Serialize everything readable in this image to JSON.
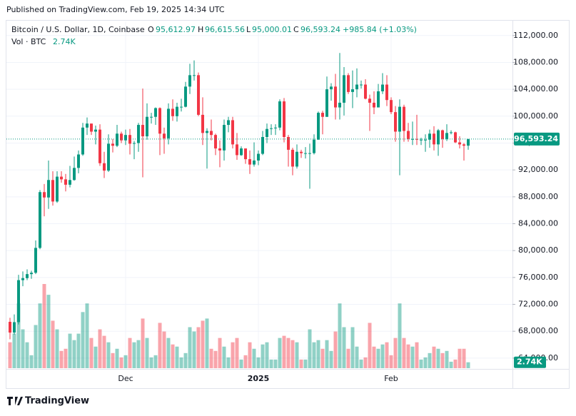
{
  "published": "Published on TradingView.com, Feb 19, 2025 14:34 UTC",
  "footer": "TradingView",
  "chart_data": {
    "type": "candlestick",
    "legend": {
      "symbol": "Bitcoin / U.S. Dollar, 1D, Coinbase",
      "open_label": "O",
      "open": "95,612.97",
      "high_label": "H",
      "high": "96,615.56",
      "low_label": "L",
      "low": "95,000.01",
      "close_label": "C",
      "close": "96,593.24",
      "change": "+985.84 (+1.03%)"
    },
    "up_color": "#089981",
    "down_color": "#f23645",
    "categories": [
      null,
      null,
      null,
      null,
      null,
      null,
      null,
      null,
      null,
      null,
      null,
      null,
      null,
      null,
      null,
      null,
      null,
      null,
      null,
      null,
      null,
      null,
      null,
      null,
      null,
      null,
      null,
      "Dec",
      null,
      null,
      null,
      null,
      null,
      null,
      null,
      null,
      null,
      null,
      null,
      null,
      null,
      null,
      null,
      null,
      null,
      null,
      null,
      null,
      null,
      null,
      null,
      null,
      null,
      null,
      null,
      null,
      null,
      null,
      "2025",
      null,
      null,
      null,
      null,
      null,
      null,
      null,
      null,
      null,
      null,
      null,
      null,
      null,
      null,
      null,
      null,
      null,
      null,
      null,
      null,
      null,
      null,
      null,
      null,
      null,
      null,
      null,
      null,
      null,
      null,
      "Feb",
      null,
      null,
      null,
      null,
      null,
      null,
      null,
      null,
      null,
      null,
      null,
      null,
      null,
      null,
      null,
      null,
      null,
      null
    ],
    "ohlc": [
      [
        69400,
        70000,
        66800,
        67800
      ],
      [
        67800,
        70500,
        67500,
        69350
      ],
      [
        69350,
        76400,
        69000,
        75600
      ],
      [
        75600,
        76900,
        74700,
        75900
      ],
      [
        75900,
        77200,
        75600,
        76500
      ],
      [
        76500,
        77000,
        75800,
        76700
      ],
      [
        76700,
        81500,
        76500,
        80400
      ],
      [
        80400,
        89000,
        80200,
        88700
      ],
      [
        88700,
        89900,
        85100,
        87900
      ],
      [
        87900,
        93400,
        86200,
        90500
      ],
      [
        90500,
        91800,
        86700,
        87300
      ],
      [
        87300,
        91800,
        87100,
        91000
      ],
      [
        91000,
        91800,
        90100,
        90600
      ],
      [
        90600,
        91400,
        88800,
        89800
      ],
      [
        89800,
        92600,
        89400,
        90500
      ],
      [
        90500,
        94000,
        90400,
        92300
      ],
      [
        92300,
        94900,
        91500,
        94300
      ],
      [
        94300,
        99000,
        94100,
        98300
      ],
      [
        98300,
        99800,
        97200,
        98900
      ],
      [
        98900,
        98900,
        97200,
        97700
      ],
      [
        97700,
        98600,
        95800,
        98000
      ],
      [
        98000,
        98800,
        92600,
        93000
      ],
      [
        93000,
        94700,
        90800,
        91900
      ],
      [
        91900,
        97300,
        91700,
        95900
      ],
      [
        95900,
        96600,
        94600,
        95600
      ],
      [
        95600,
        98700,
        95400,
        97400
      ],
      [
        97400,
        97700,
        96000,
        96400
      ],
      [
        96400,
        98000,
        95700,
        97200
      ],
      [
        97200,
        98100,
        94300,
        95900
      ],
      [
        95900,
        96300,
        93600,
        96000
      ],
      [
        96000,
        99000,
        94700,
        98700
      ],
      [
        98700,
        104100,
        90900,
        97000
      ],
      [
        97000,
        101900,
        96500,
        99900
      ],
      [
        99900,
        100500,
        98900,
        99900
      ],
      [
        99900,
        101300,
        98700,
        101200
      ],
      [
        101200,
        101300,
        94200,
        97400
      ],
      [
        97400,
        98300,
        94400,
        96700
      ],
      [
        96700,
        101900,
        95800,
        101100
      ],
      [
        101100,
        102500,
        99300,
        100000
      ],
      [
        100000,
        102000,
        99200,
        101400
      ],
      [
        101400,
        102600,
        100700,
        101400
      ],
      [
        101400,
        105100,
        101300,
        104400
      ],
      [
        104400,
        107800,
        103300,
        106100
      ],
      [
        106100,
        108300,
        105300,
        106100
      ],
      [
        106100,
        106500,
        100000,
        100200
      ],
      [
        100200,
        102800,
        95700,
        97500
      ],
      [
        97500,
        98200,
        92200,
        97800
      ],
      [
        97800,
        99500,
        96400,
        97200
      ],
      [
        97200,
        97400,
        94200,
        95200
      ],
      [
        95200,
        96400,
        92400,
        94900
      ],
      [
        94900,
        99500,
        93400,
        98700
      ],
      [
        98700,
        99900,
        97600,
        99400
      ],
      [
        99400,
        99900,
        95200,
        95800
      ],
      [
        95800,
        97500,
        93500,
        94200
      ],
      [
        94200,
        95500,
        94100,
        95200
      ],
      [
        95200,
        95200,
        92900,
        93600
      ],
      [
        93600,
        94900,
        91400,
        92800
      ],
      [
        92800,
        96100,
        92500,
        93400
      ],
      [
        93400,
        94900,
        92700,
        94400
      ],
      [
        94400,
        97800,
        94200,
        96900
      ],
      [
        96900,
        98900,
        96000,
        98100
      ],
      [
        98100,
        98800,
        97200,
        98200
      ],
      [
        98200,
        98800,
        97200,
        98300
      ],
      [
        98300,
        102500,
        97900,
        102200
      ],
      [
        102200,
        102700,
        96100,
        96900
      ],
      [
        96900,
        97200,
        92500,
        95000
      ],
      [
        95000,
        95300,
        91200,
        92500
      ],
      [
        92500,
        95800,
        92200,
        94700
      ],
      [
        94700,
        95000,
        93800,
        94500
      ],
      [
        94500,
        95400,
        93700,
        94500
      ],
      [
        94500,
        95900,
        89200,
        94500
      ],
      [
        94500,
        97300,
        94300,
        96500
      ],
      [
        96500,
        100700,
        96500,
        100500
      ],
      [
        100500,
        100800,
        97300,
        99900
      ],
      [
        99900,
        105900,
        99900,
        104000
      ],
      [
        104000,
        104900,
        102300,
        104400
      ],
      [
        104400,
        106300,
        99500,
        101300
      ],
      [
        101300,
        109400,
        99500,
        102000
      ],
      [
        102000,
        107300,
        100100,
        106100
      ],
      [
        106100,
        106400,
        103300,
        103600
      ],
      [
        103600,
        106800,
        101200,
        104000
      ],
      [
        104000,
        107100,
        102800,
        104700
      ],
      [
        104700,
        105300,
        104100,
        104700
      ],
      [
        104700,
        105500,
        102500,
        102600
      ],
      [
        102600,
        103200,
        97800,
        102000
      ],
      [
        102000,
        103700,
        100300,
        101300
      ],
      [
        101300,
        104800,
        101300,
        103700
      ],
      [
        103700,
        106400,
        103300,
        104700
      ],
      [
        104700,
        106100,
        101500,
        102400
      ],
      [
        102400,
        102800,
        100300,
        100600
      ],
      [
        100600,
        101500,
        96200,
        97700
      ],
      [
        97700,
        102500,
        91200,
        101400
      ],
      [
        101400,
        101700,
        96200,
        97800
      ],
      [
        97800,
        99000,
        96200,
        96600
      ],
      [
        96600,
        99200,
        95700,
        96600
      ],
      [
        96600,
        100200,
        95700,
        96500
      ],
      [
        96500,
        96800,
        95700,
        96500
      ],
      [
        96500,
        97300,
        94700,
        96500
      ],
      [
        96500,
        98000,
        95300,
        97400
      ],
      [
        97400,
        98500,
        94900,
        95800
      ],
      [
        95800,
        98100,
        94100,
        97900
      ],
      [
        97900,
        98000,
        95300,
        96600
      ],
      [
        96600,
        98800,
        96300,
        97500
      ],
      [
        97500,
        97900,
        97300,
        97600
      ],
      [
        97600,
        97700,
        96000,
        96100
      ],
      [
        96100,
        97000,
        95200,
        95800
      ],
      [
        95800,
        96000,
        93400,
        95607.4
      ],
      [
        95612.97,
        96615.56,
        95000.01,
        96593.24
      ]
    ],
    "volume": {
      "name": "Vol · BTC",
      "last_label": "2.74K",
      "values": [
        12000,
        16000,
        30000,
        18000,
        12000,
        6000,
        20000,
        30000,
        39000,
        34000,
        22000,
        18000,
        8000,
        9000,
        16000,
        13000,
        16000,
        26000,
        30000,
        14000,
        10000,
        18000,
        15000,
        12000,
        7000,
        9000,
        5000,
        6000,
        14000,
        12000,
        13000,
        23000,
        14000,
        5000,
        6000,
        21000,
        17000,
        14000,
        11000,
        10000,
        5000,
        7000,
        19000,
        17000,
        19000,
        22000,
        23000,
        9000,
        8000,
        14000,
        10000,
        5000,
        12000,
        14000,
        4000,
        6000,
        12000,
        9000,
        5000,
        11000,
        12000,
        4000,
        4000,
        14000,
        15000,
        14000,
        13000,
        12000,
        4000,
        4000,
        18000,
        12000,
        13000,
        9000,
        13000,
        8000,
        17000,
        30000,
        19000,
        9000,
        19000,
        10000,
        4000,
        5000,
        21000,
        10000,
        9000,
        11000,
        12000,
        6000,
        14000,
        30000,
        14000,
        11000,
        10000,
        12000,
        4000,
        5000,
        7000,
        10000,
        9000,
        7000,
        8000,
        3000,
        4000,
        9000,
        9000,
        2740
      ]
    },
    "ylim": [
      62500,
      114100
    ],
    "yticks": [
      {
        "value": 64000,
        "label": "64,000.00"
      },
      {
        "value": 68000,
        "label": "68,000.00"
      },
      {
        "value": 72000,
        "label": "72,000.00"
      },
      {
        "value": 76000,
        "label": "76,000.00"
      },
      {
        "value": 80000,
        "label": "80,000.00"
      },
      {
        "value": 84000,
        "label": "84,000.00"
      },
      {
        "value": 88000,
        "label": "88,000.00"
      },
      {
        "value": 92000,
        "label": "92,000.00"
      },
      {
        "value": 96000,
        "label": "96,000.00"
      },
      {
        "value": 100000,
        "label": "100,000.00"
      },
      {
        "value": 104000,
        "label": "104,000.00"
      },
      {
        "value": 108000,
        "label": "108,000.00"
      },
      {
        "value": 112000,
        "label": "112,000.00"
      }
    ],
    "last_price": {
      "value": 96593.24,
      "label": "96,593.24"
    },
    "grid": true
  }
}
